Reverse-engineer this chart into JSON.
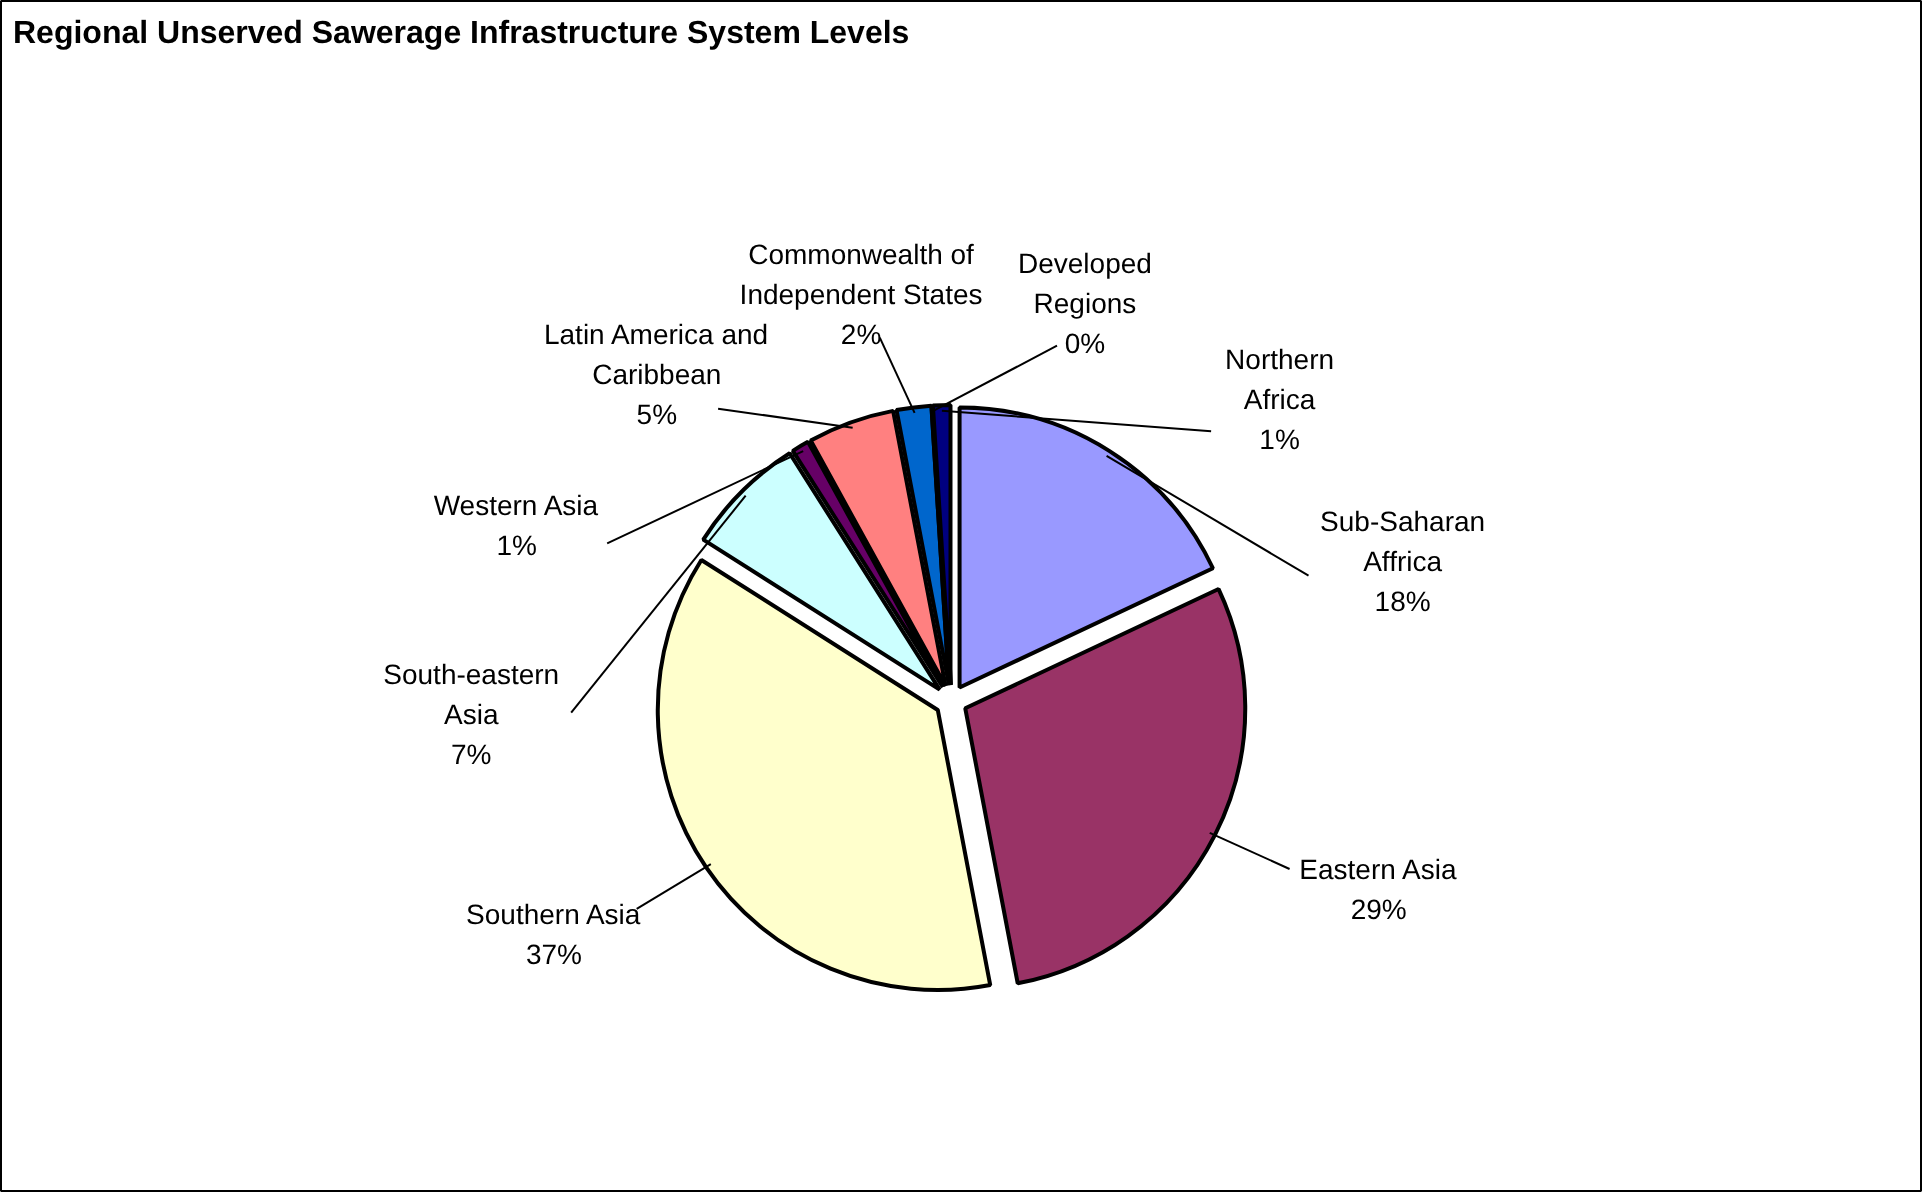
{
  "chart_data": {
    "type": "pie",
    "title": "Regional Unserved Sawerage Infrastructure System Levels",
    "categories": [
      "Sub-Saharan Affrica",
      "Eastern Asia",
      "Southern Asia",
      "South-eastern Asia",
      "Western Asia",
      "Latin America and Caribbean",
      "Commonwealth of Independent States",
      "Developed Regions",
      "Northern Africa"
    ],
    "values": [
      18,
      29,
      37,
      7,
      1,
      5,
      2,
      0,
      1
    ],
    "colors": [
      "#9999ff",
      "#993366",
      "#ffffcc",
      "#ccffff",
      "#660066",
      "#ff8080",
      "#0066cc",
      "#000000",
      "#000080"
    ],
    "value_labels": [
      "18%",
      "29%",
      "37%",
      "7%",
      "1%",
      "5%",
      "2%",
      "0%",
      "1%"
    ]
  }
}
